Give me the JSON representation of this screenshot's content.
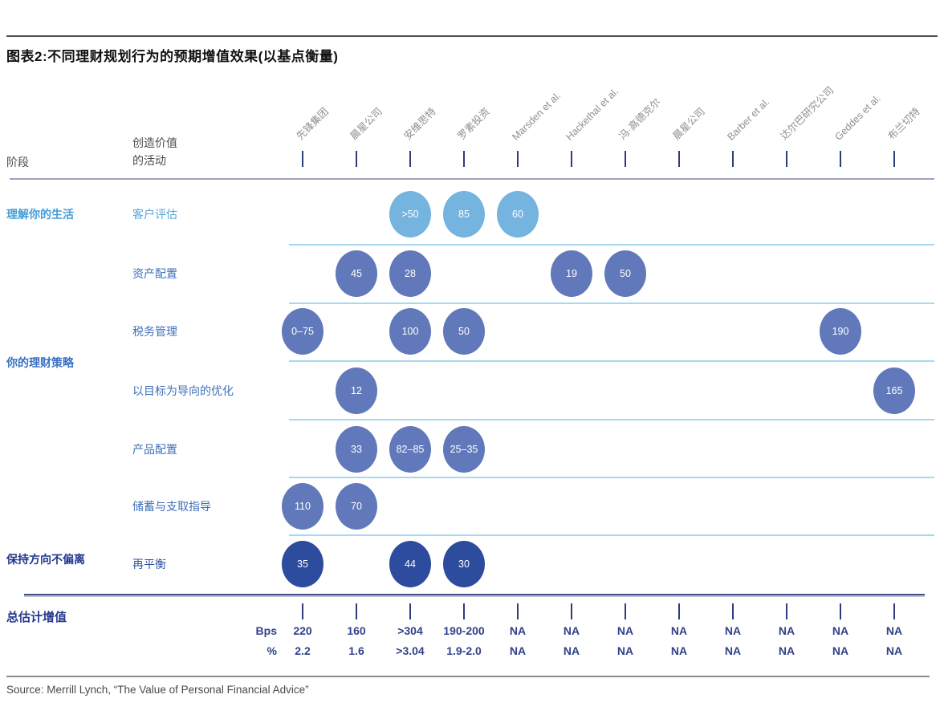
{
  "chart_data": {
    "type": "bubble",
    "title": "图表2:不同理财规划行为的预期增值效果(以基点衡量)",
    "header": {
      "stage_label": "阶段",
      "activity_label_line1": "创造价值",
      "activity_label_line2": "的活动"
    },
    "columns": [
      "先锋集团",
      "晨星公司",
      "安维思特",
      "罗素投资",
      "Marsden et al.",
      "Hackethal et al.",
      "冯·高德克尔",
      "晨星公司",
      "Barber et al.",
      "达尔巴研究公司",
      "Geddes et al.",
      "布兰切特"
    ],
    "stages": [
      {
        "label": "理解你的生活",
        "color": "#459cd7"
      },
      {
        "label": "你的理财策略",
        "color": "#3a72c4"
      },
      {
        "label": "保持方向不偏离",
        "color": "#24388f"
      }
    ],
    "rows": [
      {
        "activity": "客户评估",
        "tone": "light",
        "bubbles": [
          {
            "col": 2,
            "value": ">50"
          },
          {
            "col": 3,
            "value": "85"
          },
          {
            "col": 4,
            "value": "60"
          }
        ]
      },
      {
        "activity": "资产配置",
        "tone": "mid",
        "bubbles": [
          {
            "col": 1,
            "value": "45"
          },
          {
            "col": 2,
            "value": "28"
          },
          {
            "col": 5,
            "value": "19"
          },
          {
            "col": 6,
            "value": "50"
          }
        ]
      },
      {
        "activity": "税务管理",
        "tone": "mid",
        "bubbles": [
          {
            "col": 0,
            "value": "0–75"
          },
          {
            "col": 2,
            "value": "100"
          },
          {
            "col": 3,
            "value": "50"
          },
          {
            "col": 10,
            "value": "190"
          }
        ]
      },
      {
        "activity": "以目标为导向的优化",
        "tone": "mid",
        "bubbles": [
          {
            "col": 1,
            "value": "12"
          },
          {
            "col": 11,
            "value": "165"
          }
        ]
      },
      {
        "activity": "产品配置",
        "tone": "mid",
        "bubbles": [
          {
            "col": 1,
            "value": "33"
          },
          {
            "col": 2,
            "value": "82–85"
          },
          {
            "col": 3,
            "value": "25–35"
          }
        ]
      },
      {
        "activity": "储蓄与支取指导",
        "tone": "mid",
        "bubbles": [
          {
            "col": 0,
            "value": "110"
          },
          {
            "col": 1,
            "value": "70"
          }
        ]
      },
      {
        "activity": "再平衡",
        "tone": "dark",
        "bubbles": [
          {
            "col": 0,
            "value": "35"
          },
          {
            "col": 2,
            "value": "44"
          },
          {
            "col": 3,
            "value": "30"
          }
        ]
      }
    ],
    "totals": {
      "label": "总估计增值",
      "bps_label": "Bps",
      "pct_label": "%",
      "bps": [
        "220",
        "160",
        ">304",
        "190-200",
        "NA",
        "NA",
        "NA",
        "NA",
        "NA",
        "NA",
        "NA",
        "NA"
      ],
      "pct": [
        "2.2",
        "1.6",
        ">3.04",
        "1.9-2.0",
        "NA",
        "NA",
        "NA",
        "NA",
        "NA",
        "NA",
        "NA",
        "NA"
      ]
    },
    "colors": {
      "bubble_light": "#74b4df",
      "bubble_mid": "#6179ba",
      "bubble_dark": "#2e4c9d",
      "label_light": "#55a6db",
      "label_mid": "#3f6fba",
      "label_dark": "#2f4f9f",
      "row_divider": "#a6d9f1",
      "tick": "#2c3c7d",
      "navy_text": "#31418a",
      "header_gray": "#8f8f8f"
    },
    "source": "Source: Merrill Lynch, “The Value of Personal Financial Advice”"
  }
}
